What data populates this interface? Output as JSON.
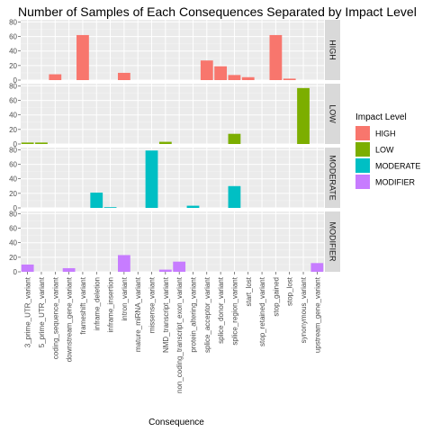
{
  "chart_data": {
    "type": "bar",
    "title": "Number of Samples of Each Consequences Separated by Impact Level",
    "xlabel": "Consequence",
    "ylabel": "",
    "ylim": [
      0,
      83
    ],
    "yticks": [
      0,
      20,
      40,
      60,
      80
    ],
    "grid": true,
    "facet": "rows",
    "categories": [
      "3_prime_UTR_variant",
      "5_prime_UTR_variant",
      "coding_sequence_variant",
      "downstream_gene_variant",
      "frameshift_variant",
      "inframe_deletion",
      "inframe_insertion",
      "intron_variant",
      "mature_miRNA_variant",
      "missense_variant",
      "NMD_transcript_variant",
      "non_coding_transcript_exon_variant",
      "protein_altering_variant",
      "splice_acceptor_variant",
      "splice_donor_variant",
      "splice_region_variant",
      "start_lost",
      "stop_retained_variant",
      "stop_gained",
      "stop_lost",
      "synonymous_variant",
      "upstream_gene_variant"
    ],
    "series": [
      {
        "name": "HIGH",
        "color": "#F8766D",
        "values": [
          0,
          0,
          8,
          0,
          62,
          0,
          0,
          10,
          0,
          0,
          0,
          0,
          0,
          27,
          19,
          7,
          4,
          0,
          62,
          2,
          0,
          0
        ]
      },
      {
        "name": "LOW",
        "color": "#7CAE00",
        "values": [
          2,
          2,
          0,
          0,
          0,
          0,
          0,
          0,
          0,
          0,
          3,
          0,
          0,
          0,
          0,
          14,
          0,
          0,
          0,
          0,
          77,
          0
        ]
      },
      {
        "name": "MODERATE",
        "color": "#00BFC4",
        "values": [
          0,
          0,
          0,
          0,
          0,
          21,
          1,
          0,
          0,
          79,
          0,
          0,
          3,
          0,
          0,
          30,
          0,
          0,
          0,
          0,
          0,
          0
        ]
      },
      {
        "name": "MODIFIER",
        "color": "#C77CFF",
        "values": [
          10,
          0,
          0,
          5,
          0,
          0,
          0,
          23,
          0,
          0,
          3,
          14,
          0,
          0,
          0,
          0,
          0,
          0,
          0,
          0,
          0,
          12
        ]
      }
    ],
    "legend": {
      "title": "Impact Level",
      "position": "right"
    }
  }
}
